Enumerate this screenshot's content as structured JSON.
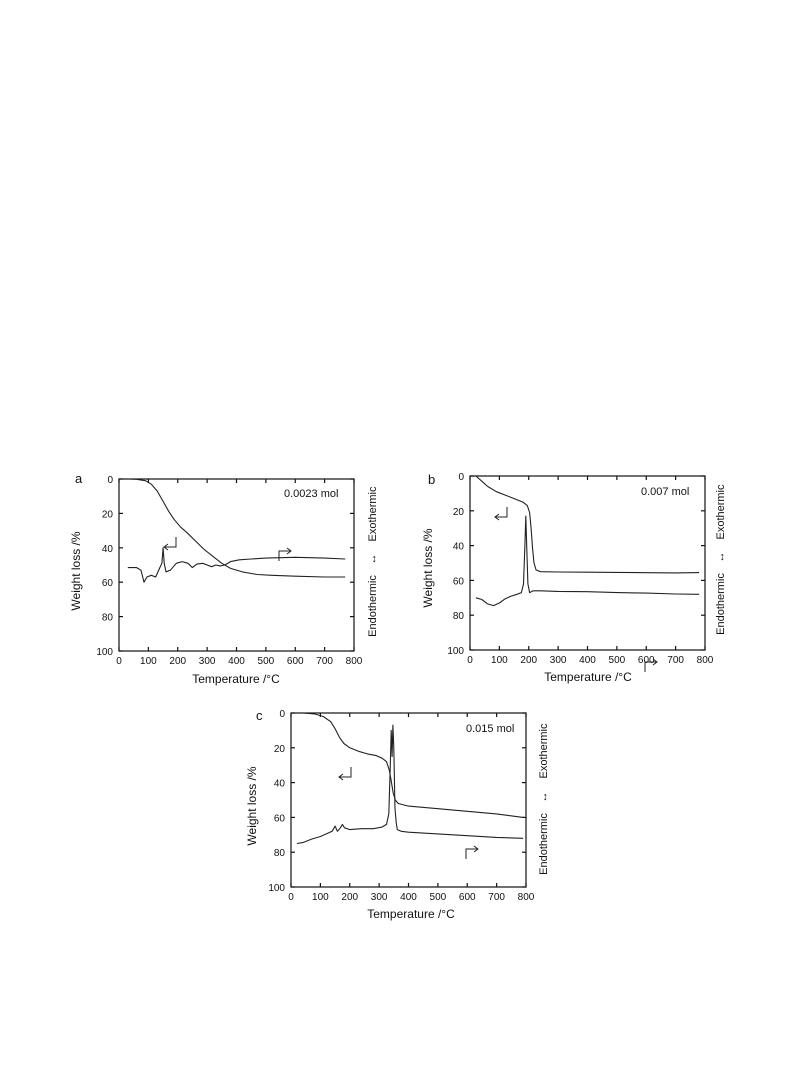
{
  "figure": {
    "panels": [
      {
        "id": "a",
        "letter": "a",
        "label": "0.0023 mol"
      },
      {
        "id": "b",
        "letter": "b",
        "label": "0.007 mol"
      },
      {
        "id": "c",
        "letter": "c",
        "label": "0.015 mol"
      }
    ]
  },
  "chart_data": [
    {
      "type": "line",
      "panel": "a",
      "annotation": "0.0023 mol",
      "xlabel": "Temperature  /°C",
      "ylabel": "Weight loss  /%",
      "right_label": {
        "top": "Exothermic",
        "bottom": "Endothermic"
      },
      "xlim": [
        0,
        800
      ],
      "ylim": [
        100,
        0
      ],
      "xticks": [
        0,
        100,
        200,
        300,
        400,
        500,
        600,
        700,
        800
      ],
      "yticks": [
        0,
        20,
        40,
        60,
        80,
        100
      ],
      "series": [
        {
          "role": "tg",
          "arrow": "left",
          "points": [
            [
              30,
              0
            ],
            [
              60,
              0.2
            ],
            [
              90,
              1
            ],
            [
              110,
              3
            ],
            [
              130,
              7
            ],
            [
              150,
              13
            ],
            [
              170,
              19
            ],
            [
              190,
              24
            ],
            [
              210,
              28
            ],
            [
              230,
              31
            ],
            [
              260,
              36
            ],
            [
              290,
              41
            ],
            [
              320,
              45
            ],
            [
              350,
              49
            ],
            [
              380,
              52
            ],
            [
              420,
              54
            ],
            [
              470,
              55.5
            ],
            [
              520,
              56
            ],
            [
              600,
              56.5
            ],
            [
              700,
              57
            ],
            [
              770,
              57
            ]
          ]
        },
        {
          "role": "dta",
          "arrow": "right",
          "points": [
            [
              30,
              51.5
            ],
            [
              60,
              51.5
            ],
            [
              75,
              53
            ],
            [
              85,
              60
            ],
            [
              95,
              57
            ],
            [
              110,
              56
            ],
            [
              125,
              57
            ],
            [
              138,
              52
            ],
            [
              146,
              49
            ],
            [
              150,
              40
            ],
            [
              154,
              49
            ],
            [
              160,
              54
            ],
            [
              175,
              53
            ],
            [
              195,
              49
            ],
            [
              215,
              48
            ],
            [
              235,
              49
            ],
            [
              250,
              51.5
            ],
            [
              265,
              49.5
            ],
            [
              285,
              49
            ],
            [
              300,
              50
            ],
            [
              315,
              51
            ],
            [
              330,
              50
            ],
            [
              345,
              50.5
            ],
            [
              360,
              50
            ],
            [
              380,
              48
            ],
            [
              410,
              47
            ],
            [
              450,
              46.5
            ],
            [
              500,
              46
            ],
            [
              600,
              45.5
            ],
            [
              700,
              46
            ],
            [
              770,
              46.5
            ]
          ]
        }
      ]
    },
    {
      "type": "line",
      "panel": "b",
      "annotation": "0.007 mol",
      "xlabel": "Temperature  /°C",
      "ylabel": "Weight loss  /%",
      "right_label": {
        "top": "Exothermic",
        "bottom": "Endothermic"
      },
      "xlim": [
        0,
        800
      ],
      "ylim": [
        100,
        0
      ],
      "xticks": [
        0,
        100,
        200,
        300,
        400,
        500,
        600,
        700,
        800
      ],
      "yticks": [
        0,
        20,
        40,
        60,
        80,
        100
      ],
      "series": [
        {
          "role": "tg",
          "arrow": "left",
          "points": [
            [
              20,
              0
            ],
            [
              40,
              3
            ],
            [
              60,
              6
            ],
            [
              90,
              9
            ],
            [
              120,
              11
            ],
            [
              150,
              13
            ],
            [
              180,
              15
            ],
            [
              195,
              17
            ],
            [
              203,
              21
            ],
            [
              208,
              30
            ],
            [
              213,
              42
            ],
            [
              218,
              50
            ],
            [
              225,
              54
            ],
            [
              240,
              55
            ],
            [
              300,
              55.2
            ],
            [
              400,
              55.3
            ],
            [
              500,
              55.4
            ],
            [
              600,
              55.6
            ],
            [
              700,
              55.7
            ],
            [
              780,
              55.5
            ]
          ]
        },
        {
          "role": "dta",
          "arrow": "right",
          "points": [
            [
              20,
              70
            ],
            [
              40,
              71
            ],
            [
              60,
              73.5
            ],
            [
              80,
              74.5
            ],
            [
              100,
              73
            ],
            [
              120,
              70.5
            ],
            [
              140,
              69
            ],
            [
              160,
              68
            ],
            [
              175,
              67
            ],
            [
              182,
              62
            ],
            [
              187,
              40
            ],
            [
              190,
              23
            ],
            [
              193,
              40
            ],
            [
              197,
              62
            ],
            [
              203,
              67
            ],
            [
              215,
              66
            ],
            [
              240,
              66
            ],
            [
              300,
              66.3
            ],
            [
              400,
              66.5
            ],
            [
              500,
              67
            ],
            [
              600,
              67.3
            ],
            [
              700,
              67.8
            ],
            [
              780,
              68
            ]
          ]
        }
      ]
    },
    {
      "type": "line",
      "panel": "c",
      "annotation": "0.015 mol",
      "xlabel": "Temperature  /°C",
      "ylabel": "Weight loss  /%",
      "right_label": {
        "top": "Exothermic",
        "bottom": "Endothermic"
      },
      "xlim": [
        0,
        800
      ],
      "ylim": [
        100,
        0
      ],
      "xticks": [
        0,
        100,
        200,
        300,
        400,
        500,
        600,
        700,
        800
      ],
      "yticks": [
        0,
        20,
        40,
        60,
        80,
        100
      ],
      "series": [
        {
          "role": "tg",
          "arrow": "left",
          "points": [
            [
              40,
              0
            ],
            [
              80,
              0.5
            ],
            [
              110,
              2
            ],
            [
              135,
              5
            ],
            [
              150,
              9
            ],
            [
              165,
              14
            ],
            [
              180,
              17.5
            ],
            [
              200,
              20
            ],
            [
              230,
              22
            ],
            [
              260,
              23.5
            ],
            [
              290,
              24.5
            ],
            [
              310,
              26
            ],
            [
              325,
              28
            ],
            [
              335,
              33
            ],
            [
              342,
              40
            ],
            [
              348,
              46
            ],
            [
              355,
              50
            ],
            [
              365,
              52
            ],
            [
              400,
              53.5
            ],
            [
              500,
              55
            ],
            [
              600,
              56.5
            ],
            [
              700,
              58
            ],
            [
              790,
              60
            ]
          ]
        },
        {
          "role": "dta",
          "arrow": "right",
          "points": [
            [
              20,
              75
            ],
            [
              40,
              74.5
            ],
            [
              70,
              72.5
            ],
            [
              100,
              71
            ],
            [
              120,
              69.5
            ],
            [
              140,
              68
            ],
            [
              150,
              65
            ],
            [
              158,
              68
            ],
            [
              168,
              66
            ],
            [
              175,
              64
            ],
            [
              182,
              66
            ],
            [
              200,
              67
            ],
            [
              240,
              66.5
            ],
            [
              280,
              66.5
            ],
            [
              310,
              65.5
            ],
            [
              325,
              64
            ],
            [
              333,
              58
            ],
            [
              338,
              30
            ],
            [
              341,
              10
            ],
            [
              344,
              25
            ],
            [
              347,
              7
            ],
            [
              350,
              20
            ],
            [
              354,
              55
            ],
            [
              358,
              63
            ],
            [
              362,
              67
            ],
            [
              375,
              68
            ],
            [
              400,
              68.5
            ],
            [
              500,
              69.5
            ],
            [
              600,
              70.5
            ],
            [
              700,
              71.5
            ],
            [
              790,
              72
            ]
          ]
        }
      ]
    }
  ]
}
